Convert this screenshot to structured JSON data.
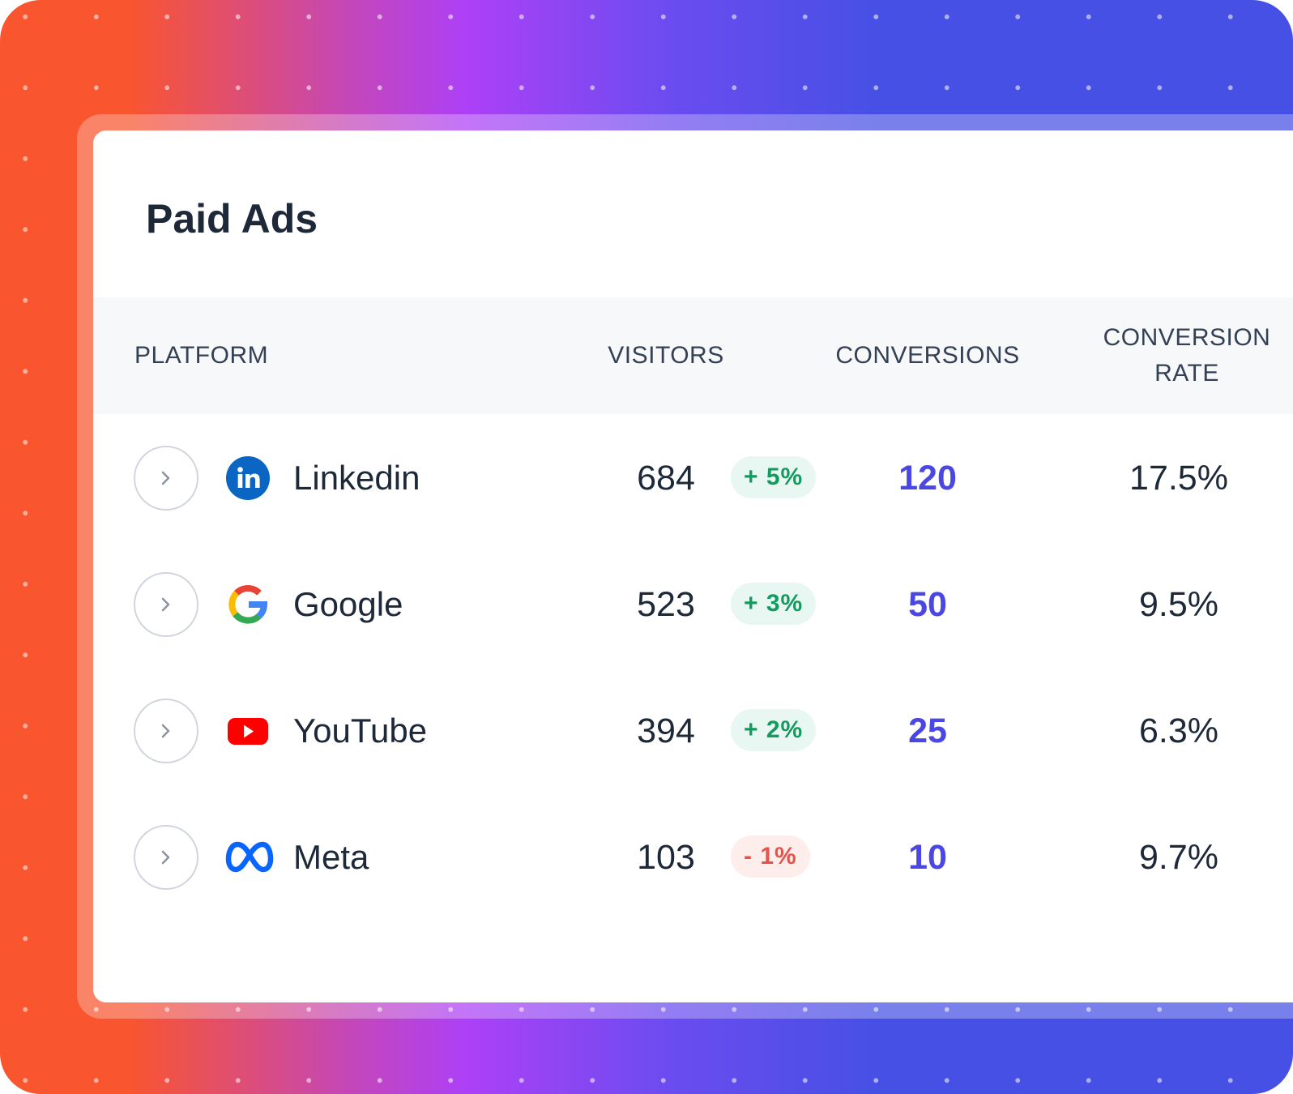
{
  "title": "Paid Ads",
  "table": {
    "columns": [
      "PLATFORM",
      "VISITORS",
      "CONVERSIONS",
      "CONVERSION RATE"
    ],
    "rows": [
      {
        "platform": "Linkedin",
        "visitors": "684",
        "change": "+ 5%",
        "conversions": "120",
        "rate": "17.5%"
      },
      {
        "platform": "Google",
        "visitors": "523",
        "change": "+ 3%",
        "conversions": "50",
        "rate": "9.5%"
      },
      {
        "platform": "YouTube",
        "visitors": "394",
        "change": "+ 2%",
        "conversions": "25",
        "rate": "6.3%"
      },
      {
        "platform": "Meta",
        "visitors": "103",
        "change": "- 1%",
        "conversions": "10",
        "rate": "9.7%"
      }
    ]
  }
}
